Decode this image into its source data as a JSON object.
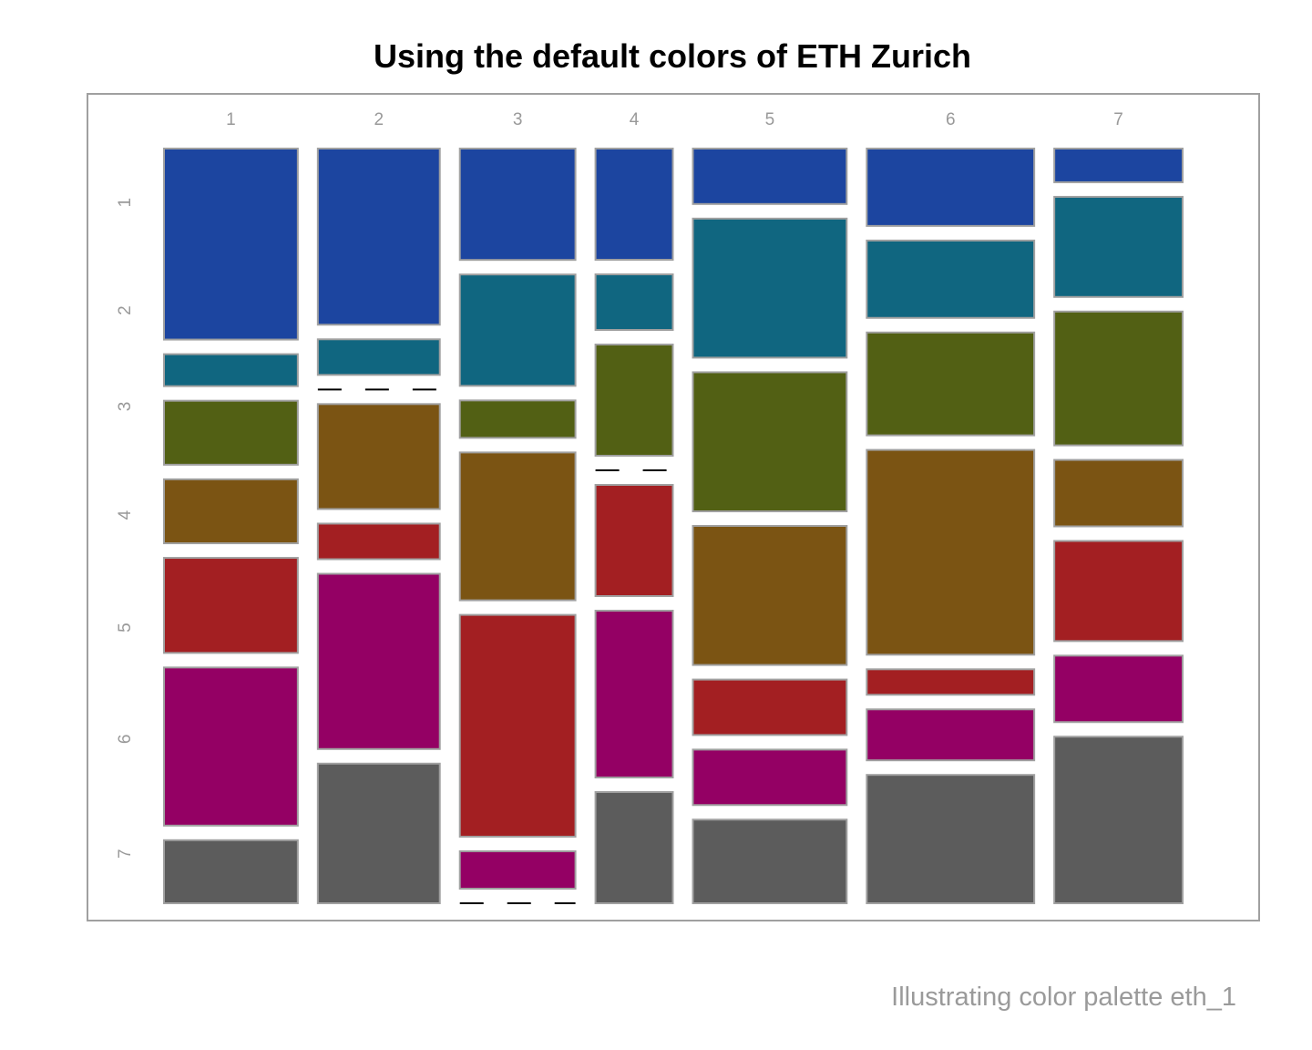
{
  "chart_data": {
    "type": "mosaic",
    "title": "Using the default colors of ETH Zurich",
    "caption": "Illustrating color palette eth_1",
    "column_labels": [
      "1",
      "2",
      "3",
      "4",
      "5",
      "6",
      "7"
    ],
    "row_labels": [
      "1",
      "2",
      "3",
      "4",
      "5",
      "6",
      "7"
    ],
    "column_widths": [
      147,
      134,
      127,
      85,
      169,
      184,
      141
    ],
    "cells": [
      [
        209,
        35,
        70,
        70,
        104,
        173,
        69
      ],
      [
        193,
        39,
        0,
        115,
        39,
        192,
        153
      ],
      [
        122,
        122,
        41,
        162,
        243,
        41,
        0
      ],
      [
        122,
        61,
        122,
        0,
        122,
        183,
        122
      ],
      [
        61,
        153,
        153,
        153,
        61,
        61,
        92
      ],
      [
        85,
        85,
        113,
        225,
        28,
        56,
        141
      ],
      [
        37,
        110,
        147,
        73,
        110,
        73,
        183
      ]
    ],
    "palette": [
      "#1c45a0",
      "#106680",
      "#526014",
      "#7b5413",
      "#a31f22",
      "#940064",
      "#5c5c5c"
    ],
    "cell_border_color": "#a0a0a0",
    "frame_color": "#a0a0a0",
    "grid": false,
    "legend": "none"
  }
}
